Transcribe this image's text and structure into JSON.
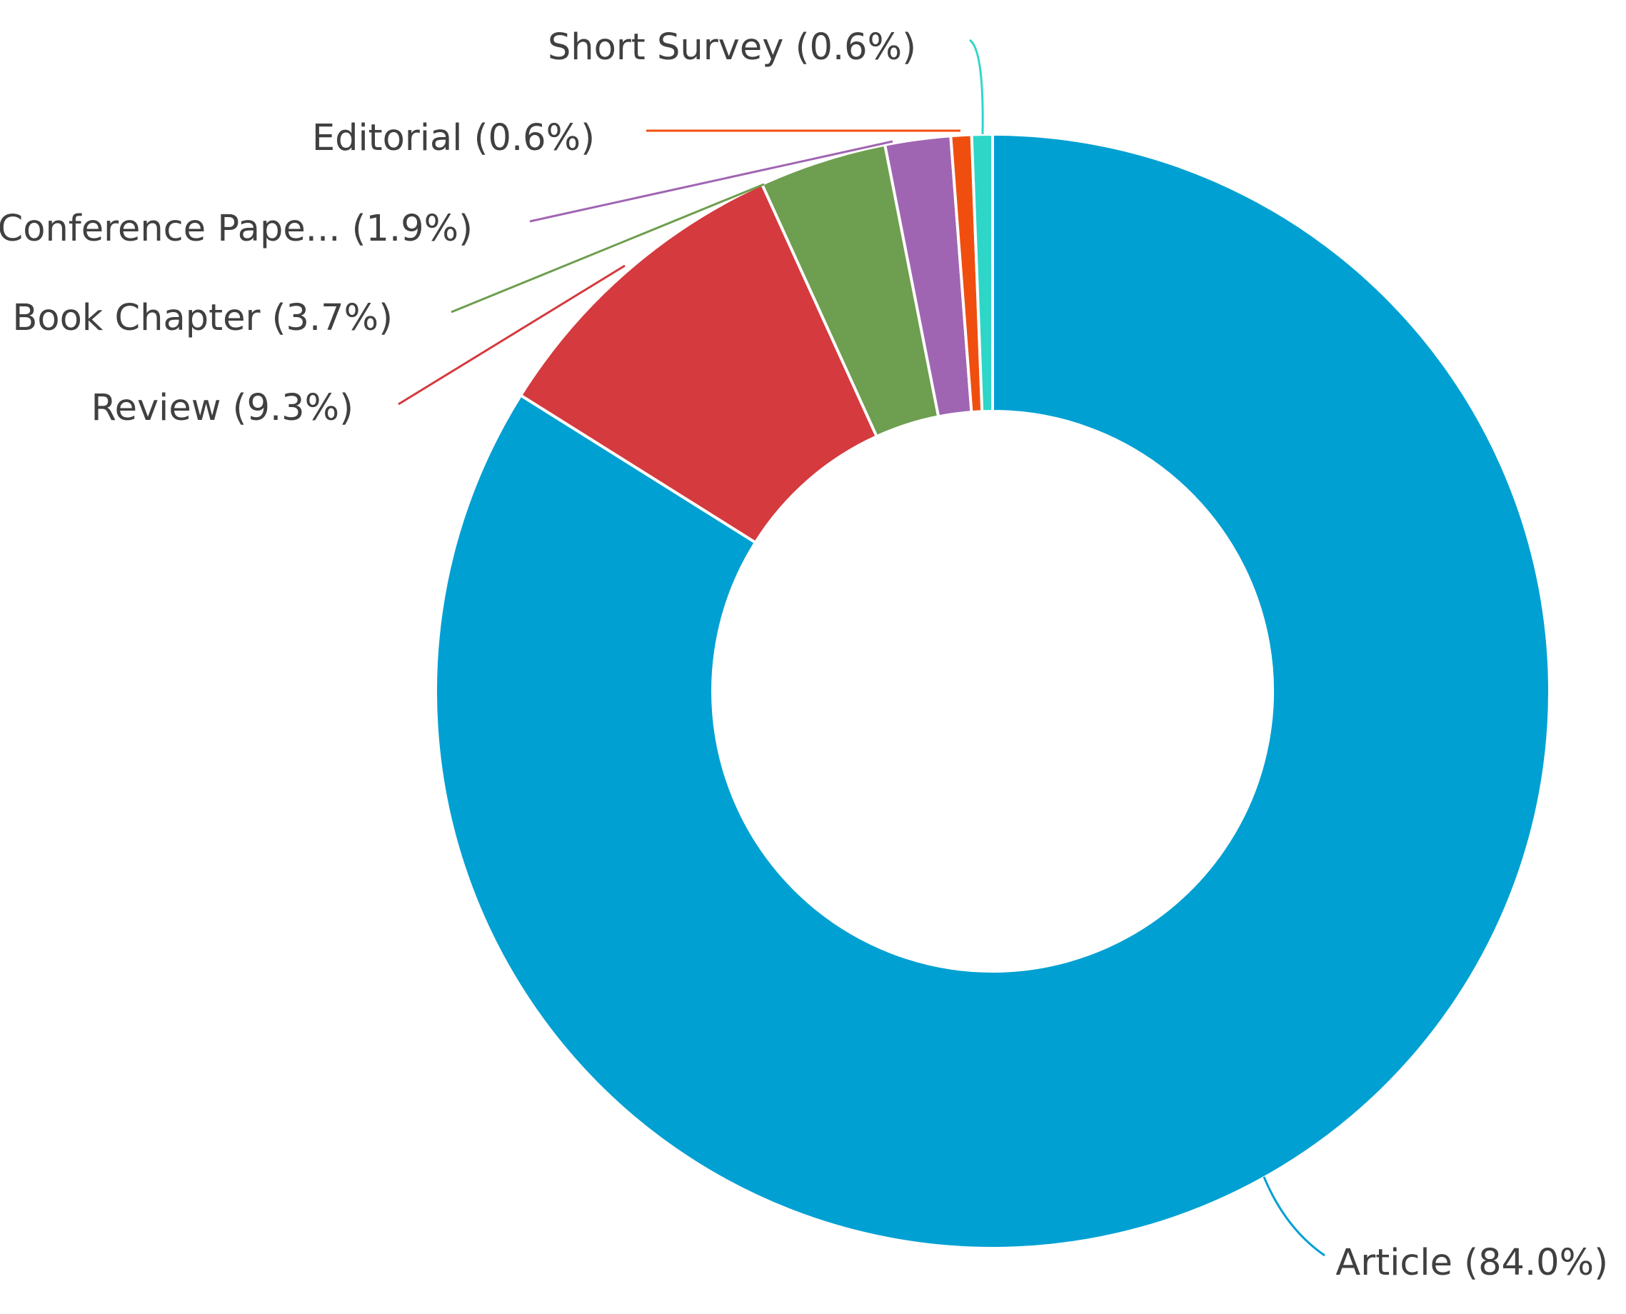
{
  "chart_data": {
    "type": "pie",
    "donut": true,
    "slices": [
      {
        "label": "Article (84.0%)",
        "name": "Article",
        "value": 84.0,
        "color": "#00a0d2"
      },
      {
        "label": "Review (9.3%)",
        "name": "Review",
        "value": 9.3,
        "color": "#d43a3e"
      },
      {
        "label": "Book Chapter (3.7%)",
        "name": "Book Chapter",
        "value": 3.7,
        "color": "#6e9e4f"
      },
      {
        "label": "Conference Pape... (1.9%)",
        "name": "Conference Pape...",
        "value": 1.9,
        "color": "#a065b2"
      },
      {
        "label": "Editorial (0.6%)",
        "name": "Editorial",
        "value": 0.6,
        "color": "#f04e0f"
      },
      {
        "label": "Short Survey (0.6%)",
        "name": "Short Survey",
        "value": 0.6,
        "color": "#2ed6c8"
      }
    ],
    "legend": "none"
  }
}
